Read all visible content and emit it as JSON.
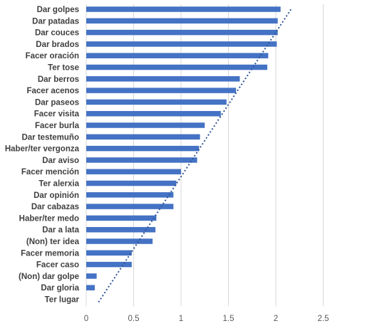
{
  "chart_data": {
    "type": "bar",
    "orientation": "horizontal",
    "categories": [
      "Dar golpes",
      "Dar patadas",
      "Dar couces",
      "Dar brados",
      "Facer oración",
      "Ter tose",
      "Dar berros",
      "Facer acenos",
      "Dar paseos",
      "Facer visita",
      "Facer burla",
      "Dar testemuño",
      "Haber/ter vergonza",
      "Dar aviso",
      "Facer mención",
      "Ter alerxia",
      "Dar opinión",
      "Dar cabazas",
      "Haber/ter medo",
      "Dar a lata",
      "(Non) ter idea",
      "Facer memoria",
      "Facer caso",
      "(Non) dar golpe",
      "Dar gloria",
      "Ter lugar"
    ],
    "values": [
      2.05,
      2.02,
      2.02,
      2.01,
      1.92,
      1.91,
      1.62,
      1.58,
      1.48,
      1.42,
      1.25,
      1.2,
      1.19,
      1.17,
      1.0,
      0.95,
      0.92,
      0.92,
      0.74,
      0.73,
      0.7,
      0.48,
      0.48,
      0.11,
      0.09,
      0.0
    ],
    "xlim": [
      0,
      2.5
    ],
    "xticks": [
      "0",
      "0.5",
      "1",
      "1.5",
      "2",
      "2.5"
    ],
    "xtick_values": [
      0,
      0.5,
      1,
      1.5,
      2,
      2.5
    ],
    "grid": "vertical",
    "legend": "none",
    "trendline": {
      "style": "dotted linear",
      "from": 0.13,
      "to": 2.17
    },
    "colors": {
      "bar": "#4472c4",
      "trendline": "#2f5597",
      "grid": "#d9d9d9"
    }
  }
}
